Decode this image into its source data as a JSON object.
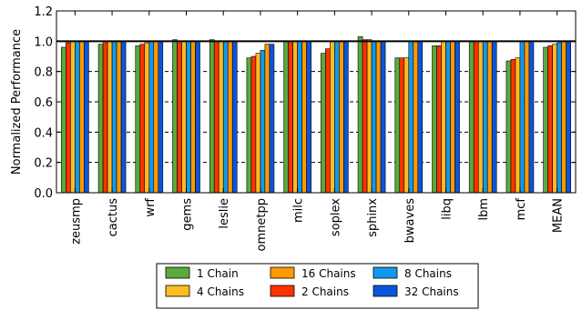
{
  "chart_data": {
    "type": "bar",
    "title": "",
    "xlabel": "",
    "ylabel": "Normalized Performance",
    "ylim": [
      0.0,
      1.2
    ],
    "yticks": [
      "0.0",
      "0.2",
      "0.4",
      "0.6",
      "0.8",
      "1.0",
      "1.2"
    ],
    "reference_line": 1.0,
    "grid": "horizontal",
    "legend_position": "bottom",
    "categories": [
      "zeusmp",
      "cactus",
      "wrf",
      "gems",
      "leslie",
      "omnetpp",
      "milc",
      "soplex",
      "sphinx",
      "bwaves",
      "libq",
      "lbm",
      "mcf",
      "MEAN"
    ],
    "series": [
      {
        "name": "1 Chain",
        "color": "#5aaa3c",
        "values": [
          0.96,
          0.98,
          0.97,
          1.01,
          1.01,
          0.89,
          1.0,
          0.92,
          1.03,
          0.89,
          0.97,
          1.0,
          0.87,
          0.96
        ]
      },
      {
        "name": "2 Chains",
        "color": "#ff3300",
        "values": [
          0.99,
          1.0,
          0.98,
          1.0,
          1.0,
          0.9,
          1.0,
          0.95,
          1.01,
          0.89,
          0.97,
          1.0,
          0.88,
          0.97
        ]
      },
      {
        "name": "4 Chains",
        "color": "#ffbb22",
        "values": [
          1.0,
          1.0,
          0.99,
          1.0,
          1.0,
          0.92,
          1.0,
          1.0,
          1.01,
          0.89,
          1.0,
          1.0,
          0.89,
          0.98
        ]
      },
      {
        "name": "8 Chains",
        "color": "#1199ee",
        "values": [
          1.0,
          1.0,
          1.0,
          1.0,
          1.0,
          0.94,
          1.0,
          1.0,
          1.0,
          1.0,
          1.0,
          1.0,
          1.0,
          0.99
        ]
      },
      {
        "name": "16 Chains",
        "color": "#ff9900",
        "values": [
          1.0,
          1.0,
          1.0,
          1.0,
          1.0,
          0.98,
          1.0,
          1.0,
          1.0,
          1.0,
          1.0,
          1.0,
          1.0,
          1.0
        ]
      },
      {
        "name": "32 Chains",
        "color": "#0a55dd",
        "values": [
          1.0,
          1.0,
          1.0,
          1.0,
          1.0,
          0.98,
          1.0,
          1.0,
          1.0,
          1.0,
          1.0,
          1.0,
          1.0,
          1.0
        ]
      }
    ],
    "legend_order": [
      0,
      2,
      4,
      1,
      3,
      5
    ]
  }
}
